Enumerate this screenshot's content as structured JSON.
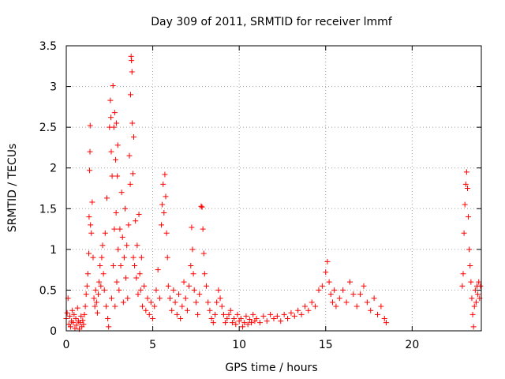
{
  "chart_data": {
    "type": "scatter",
    "title": "Day 309 of 2011, SRMTID for receiver lmmf",
    "xlabel": "GPS time / hours",
    "ylabel": "SRMTID / TECUs",
    "xlim": [
      0,
      24
    ],
    "ylim": [
      0,
      3.5
    ],
    "x_ticks": [
      0,
      5,
      10,
      15,
      20
    ],
    "x_tick_labels": [
      "0",
      "5",
      "10",
      "15",
      "20"
    ],
    "y_ticks": [
      0,
      0.5,
      1,
      1.5,
      2,
      2.5,
      3,
      3.5
    ],
    "y_tick_labels": [
      "0",
      "0.5",
      "1",
      "1.5",
      "2",
      "2.5",
      "3",
      "3.5"
    ],
    "grid": true,
    "marker": "+",
    "color": "#ff0000",
    "points": [
      [
        0.0,
        0.15
      ],
      [
        0.05,
        0.22
      ],
      [
        0.1,
        0.4
      ],
      [
        0.15,
        0.08
      ],
      [
        0.2,
        0.18
      ],
      [
        0.25,
        0.05
      ],
      [
        0.3,
        0.12
      ],
      [
        0.35,
        0.25
      ],
      [
        0.4,
        0.1
      ],
      [
        0.45,
        0.2
      ],
      [
        0.5,
        0.03
      ],
      [
        0.55,
        0.15
      ],
      [
        0.6,
        0.07
      ],
      [
        0.65,
        0.28
      ],
      [
        0.7,
        0.12
      ],
      [
        0.75,
        0.02
      ],
      [
        0.8,
        0.1
      ],
      [
        0.85,
        0.18
      ],
      [
        0.9,
        0.05
      ],
      [
        0.95,
        0.13
      ],
      [
        1.0,
        0.08
      ],
      [
        1.05,
        0.2
      ],
      [
        1.1,
        0.3
      ],
      [
        1.15,
        0.45
      ],
      [
        1.2,
        0.55
      ],
      [
        1.25,
        0.7
      ],
      [
        1.3,
        0.95
      ],
      [
        1.32,
        1.4
      ],
      [
        1.35,
        1.97
      ],
      [
        1.37,
        2.2
      ],
      [
        1.38,
        2.52
      ],
      [
        1.4,
        1.3
      ],
      [
        1.45,
        1.2
      ],
      [
        1.5,
        1.58
      ],
      [
        1.55,
        0.9
      ],
      [
        1.6,
        0.4
      ],
      [
        1.65,
        0.3
      ],
      [
        1.7,
        0.5
      ],
      [
        1.75,
        0.35
      ],
      [
        1.8,
        0.22
      ],
      [
        1.85,
        0.45
      ],
      [
        1.9,
        0.6
      ],
      [
        1.95,
        0.8
      ],
      [
        2.0,
        0.55
      ],
      [
        2.05,
        0.9
      ],
      [
        2.1,
        1.05
      ],
      [
        2.15,
        0.7
      ],
      [
        2.2,
        0.5
      ],
      [
        2.25,
        1.2
      ],
      [
        2.3,
        0.3
      ],
      [
        2.35,
        1.63
      ],
      [
        2.4,
        0.15
      ],
      [
        2.45,
        0.05
      ],
      [
        2.5,
        2.5
      ],
      [
        2.55,
        2.83
      ],
      [
        2.58,
        2.62
      ],
      [
        2.6,
        2.2
      ],
      [
        2.62,
        0.4
      ],
      [
        2.65,
        1.9
      ],
      [
        2.7,
        3.01
      ],
      [
        2.72,
        0.8
      ],
      [
        2.75,
        2.5
      ],
      [
        2.78,
        1.25
      ],
      [
        2.8,
        2.68
      ],
      [
        2.82,
        0.3
      ],
      [
        2.85,
        2.1
      ],
      [
        2.88,
        1.45
      ],
      [
        2.9,
        2.55
      ],
      [
        2.92,
        0.6
      ],
      [
        2.95,
        1.9
      ],
      [
        2.98,
        2.28
      ],
      [
        3.0,
        1.0
      ],
      [
        3.05,
        0.5
      ],
      [
        3.1,
        1.25
      ],
      [
        3.15,
        0.8
      ],
      [
        3.2,
        1.7
      ],
      [
        3.25,
        1.15
      ],
      [
        3.3,
        0.35
      ],
      [
        3.35,
        0.9
      ],
      [
        3.4,
        1.5
      ],
      [
        3.45,
        0.65
      ],
      [
        3.5,
        1.05
      ],
      [
        3.55,
        0.4
      ],
      [
        3.6,
        1.3
      ],
      [
        3.65,
        2.15
      ],
      [
        3.7,
        1.8
      ],
      [
        3.72,
        2.9
      ],
      [
        3.75,
        3.37
      ],
      [
        3.77,
        3.32
      ],
      [
        3.8,
        3.18
      ],
      [
        3.82,
        2.55
      ],
      [
        3.85,
        1.93
      ],
      [
        3.88,
        0.9
      ],
      [
        3.9,
        2.38
      ],
      [
        3.95,
        0.8
      ],
      [
        4.0,
        1.35
      ],
      [
        4.05,
        0.65
      ],
      [
        4.1,
        1.05
      ],
      [
        4.15,
        0.45
      ],
      [
        4.2,
        1.43
      ],
      [
        4.25,
        0.7
      ],
      [
        4.3,
        0.5
      ],
      [
        4.35,
        0.9
      ],
      [
        4.4,
        0.3
      ],
      [
        4.5,
        0.55
      ],
      [
        4.6,
        0.25
      ],
      [
        4.7,
        0.4
      ],
      [
        4.8,
        0.2
      ],
      [
        4.9,
        0.35
      ],
      [
        5.0,
        0.15
      ],
      [
        5.1,
        0.3
      ],
      [
        5.2,
        0.5
      ],
      [
        5.3,
        0.75
      ],
      [
        5.4,
        0.4
      ],
      [
        5.5,
        1.3
      ],
      [
        5.55,
        1.55
      ],
      [
        5.6,
        1.8
      ],
      [
        5.65,
        1.45
      ],
      [
        5.7,
        1.92
      ],
      [
        5.75,
        1.65
      ],
      [
        5.8,
        1.2
      ],
      [
        5.85,
        0.9
      ],
      [
        5.9,
        0.55
      ],
      [
        6.0,
        0.4
      ],
      [
        6.1,
        0.25
      ],
      [
        6.2,
        0.5
      ],
      [
        6.3,
        0.35
      ],
      [
        6.4,
        0.2
      ],
      [
        6.5,
        0.45
      ],
      [
        6.6,
        0.15
      ],
      [
        6.7,
        0.3
      ],
      [
        6.8,
        0.6
      ],
      [
        6.9,
        0.4
      ],
      [
        7.0,
        0.25
      ],
      [
        7.1,
        0.55
      ],
      [
        7.2,
        0.8
      ],
      [
        7.25,
        1.27
      ],
      [
        7.3,
        1.0
      ],
      [
        7.35,
        0.7
      ],
      [
        7.4,
        0.5
      ],
      [
        7.5,
        0.35
      ],
      [
        7.6,
        0.2
      ],
      [
        7.7,
        0.45
      ],
      [
        7.8,
        1.53
      ],
      [
        7.85,
        1.52
      ],
      [
        7.9,
        1.25
      ],
      [
        7.95,
        0.95
      ],
      [
        8.0,
        0.7
      ],
      [
        8.1,
        0.55
      ],
      [
        8.2,
        0.35
      ],
      [
        8.3,
        0.25
      ],
      [
        8.4,
        0.15
      ],
      [
        8.5,
        0.1
      ],
      [
        8.6,
        0.2
      ],
      [
        8.7,
        0.35
      ],
      [
        8.8,
        0.5
      ],
      [
        8.9,
        0.4
      ],
      [
        9.0,
        0.3
      ],
      [
        9.1,
        0.2
      ],
      [
        9.2,
        0.1
      ],
      [
        9.3,
        0.15
      ],
      [
        9.4,
        0.2
      ],
      [
        9.5,
        0.25
      ],
      [
        9.6,
        0.1
      ],
      [
        9.7,
        0.15
      ],
      [
        9.8,
        0.08
      ],
      [
        9.9,
        0.2
      ],
      [
        10.0,
        0.12
      ],
      [
        10.1,
        0.15
      ],
      [
        10.2,
        0.05
      ],
      [
        10.3,
        0.1
      ],
      [
        10.4,
        0.18
      ],
      [
        10.5,
        0.08
      ],
      [
        10.6,
        0.14
      ],
      [
        10.7,
        0.1
      ],
      [
        10.8,
        0.2
      ],
      [
        10.9,
        0.12
      ],
      [
        11.0,
        0.15
      ],
      [
        11.2,
        0.1
      ],
      [
        11.4,
        0.18
      ],
      [
        11.6,
        0.12
      ],
      [
        11.8,
        0.2
      ],
      [
        12.0,
        0.15
      ],
      [
        12.2,
        0.18
      ],
      [
        12.4,
        0.12
      ],
      [
        12.6,
        0.2
      ],
      [
        12.8,
        0.15
      ],
      [
        13.0,
        0.22
      ],
      [
        13.2,
        0.18
      ],
      [
        13.4,
        0.25
      ],
      [
        13.6,
        0.2
      ],
      [
        13.8,
        0.3
      ],
      [
        14.0,
        0.25
      ],
      [
        14.2,
        0.35
      ],
      [
        14.4,
        0.3
      ],
      [
        14.6,
        0.5
      ],
      [
        14.8,
        0.55
      ],
      [
        15.0,
        0.72
      ],
      [
        15.1,
        0.85
      ],
      [
        15.2,
        0.6
      ],
      [
        15.3,
        0.45
      ],
      [
        15.4,
        0.35
      ],
      [
        15.5,
        0.5
      ],
      [
        15.6,
        0.3
      ],
      [
        15.8,
        0.4
      ],
      [
        16.0,
        0.5
      ],
      [
        16.2,
        0.35
      ],
      [
        16.4,
        0.6
      ],
      [
        16.6,
        0.45
      ],
      [
        16.8,
        0.3
      ],
      [
        17.0,
        0.45
      ],
      [
        17.2,
        0.55
      ],
      [
        17.4,
        0.35
      ],
      [
        17.6,
        0.25
      ],
      [
        17.8,
        0.4
      ],
      [
        18.0,
        0.2
      ],
      [
        18.2,
        0.3
      ],
      [
        18.4,
        0.15
      ],
      [
        18.5,
        0.1
      ],
      [
        22.9,
        0.55
      ],
      [
        22.95,
        0.7
      ],
      [
        23.0,
        1.2
      ],
      [
        23.05,
        1.55
      ],
      [
        23.1,
        1.8
      ],
      [
        23.15,
        1.95
      ],
      [
        23.2,
        1.75
      ],
      [
        23.25,
        1.4
      ],
      [
        23.3,
        1.0
      ],
      [
        23.35,
        0.8
      ],
      [
        23.4,
        0.6
      ],
      [
        23.45,
        0.4
      ],
      [
        23.5,
        0.2
      ],
      [
        23.55,
        0.05
      ],
      [
        23.6,
        0.3
      ],
      [
        23.65,
        0.5
      ],
      [
        23.7,
        0.35
      ],
      [
        23.75,
        0.55
      ],
      [
        23.8,
        0.45
      ],
      [
        23.85,
        0.6
      ],
      [
        23.9,
        0.4
      ],
      [
        23.95,
        0.55
      ]
    ]
  }
}
